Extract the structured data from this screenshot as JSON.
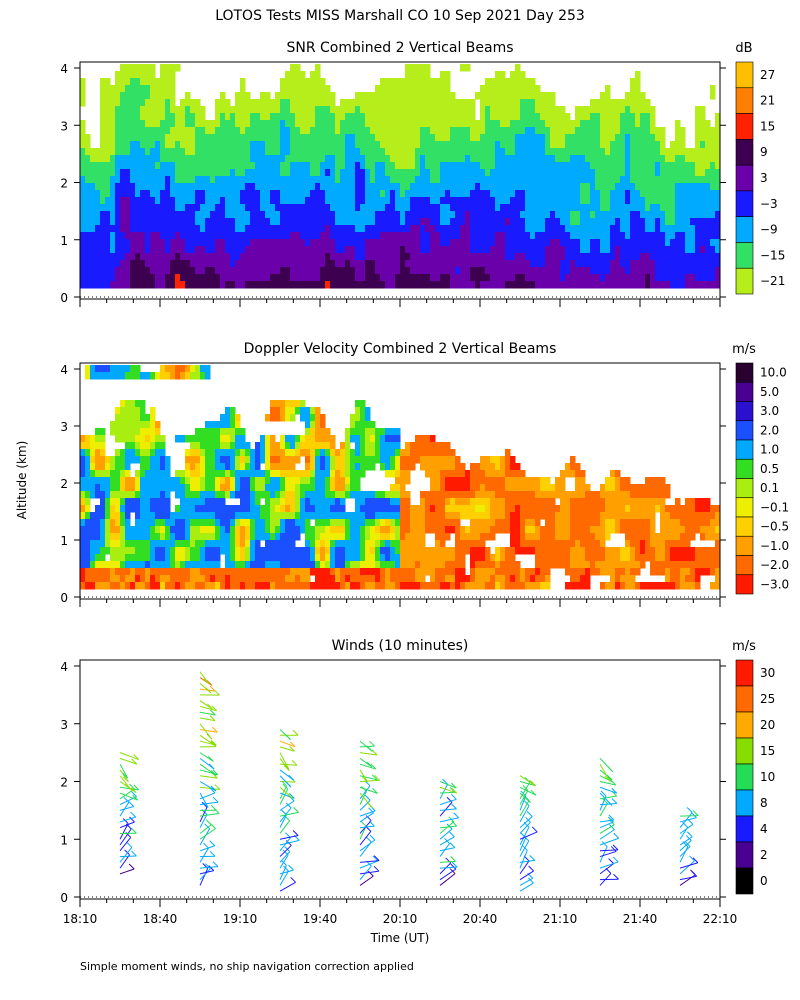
{
  "page": {
    "title": "LOTOS Tests MISS Marshall CO  10 Sep 2021 Day 253",
    "ylabel": "Altitude (km)",
    "xlabel": "Time (UT)",
    "footnote": "Simple moment winds, no ship navigation correction applied"
  },
  "chart_data": [
    {
      "type": "heatmap",
      "title": "SNR Combined 2 Vertical Beams",
      "ylabel": "Altitude (km)",
      "ylim": [
        0,
        4
      ],
      "yticks": [
        "0",
        "1",
        "2",
        "3",
        "4"
      ],
      "xlim": [
        "18:10",
        "22:10"
      ],
      "colorbar_unit": "dB",
      "colorbar_labels": [
        "27",
        "21",
        "15",
        "9",
        "3",
        "−3",
        "−9",
        "−15",
        "−21"
      ],
      "colorbar_colors": [
        "#ffbf00",
        "#ff7f00",
        "#ff2200",
        "#3d0050",
        "#6a00aa",
        "#1a1aff",
        "#00aaff",
        "#33e066",
        "#b5ee1a"
      ],
      "field_summary": [
        {
          "altitude_km": 0.5,
          "snr_db": 3
        },
        {
          "altitude_km": 1.0,
          "snr_db": -3
        },
        {
          "altitude_km": 1.5,
          "snr_db": -9
        },
        {
          "altitude_km": 2.0,
          "snr_db": -15
        },
        {
          "altitude_km": 3.0,
          "snr_db": -21
        }
      ]
    },
    {
      "type": "heatmap",
      "title": "Doppler Velocity Combined 2 Vertical Beams",
      "ylabel": "Altitude (km)",
      "ylim": [
        0,
        4
      ],
      "yticks": [
        "0",
        "1",
        "2",
        "3",
        "4"
      ],
      "xlim": [
        "18:10",
        "22:10"
      ],
      "colorbar_unit": "m/s",
      "colorbar_labels": [
        "10.0",
        "5.0",
        "3.0",
        "2.0",
        "1.0",
        "0.5",
        "0.1",
        "−0.1",
        "−0.5",
        "−1.0",
        "−2.0",
        "−3.0"
      ],
      "colorbar_colors": [
        "#2a0030",
        "#4a0090",
        "#2b10d0",
        "#1a50ff",
        "#00a8ff",
        "#33dd22",
        "#a8ee10",
        "#eeee00",
        "#ffd000",
        "#ffa000",
        "#ff6a00",
        "#ff1a00"
      ],
      "field_summary": [
        {
          "time": "18:40",
          "dominant_velocity_ms": 0.5
        },
        {
          "time": "19:40",
          "dominant_velocity_ms": 1.0
        },
        {
          "time": "20:40",
          "dominant_velocity_ms": -2.0
        },
        {
          "time": "21:40",
          "dominant_velocity_ms": -2.0
        }
      ]
    },
    {
      "type": "scatter",
      "title": "Winds (10 minutes)",
      "ylabel": "Altitude (km)",
      "xlabel": "Time (UT)",
      "ylim": [
        0,
        4
      ],
      "yticks": [
        "0",
        "1",
        "2",
        "3",
        "4"
      ],
      "xticks": [
        "18:10",
        "18:40",
        "19:10",
        "19:40",
        "20:10",
        "20:40",
        "21:10",
        "21:40",
        "22:10"
      ],
      "colorbar_unit": "m/s",
      "colorbar_labels": [
        "30",
        "25",
        "20",
        "15",
        "10",
        "8",
        "4",
        "2",
        "0"
      ],
      "colorbar_colors": [
        "#ff1a00",
        "#ff6a00",
        "#ffaa00",
        "#88dd00",
        "#22dd55",
        "#00aaff",
        "#1a1aff",
        "#4a0090",
        "#000000"
      ],
      "profiles": [
        {
          "time": "18:25",
          "altitude_range_km": [
            0.4,
            2.6
          ]
        },
        {
          "time": "18:55",
          "altitude_range_km": [
            0.2,
            4.0
          ]
        },
        {
          "time": "19:25",
          "altitude_range_km": [
            0.1,
            3.0
          ]
        },
        {
          "time": "19:55",
          "altitude_range_km": [
            0.2,
            2.8
          ]
        },
        {
          "time": "20:25",
          "altitude_range_km": [
            0.2,
            2.1
          ]
        },
        {
          "time": "20:55",
          "altitude_range_km": [
            0.1,
            2.2
          ]
        },
        {
          "time": "21:25",
          "altitude_range_km": [
            0.2,
            2.5
          ]
        },
        {
          "time": "21:55",
          "altitude_range_km": [
            0.2,
            1.5
          ]
        }
      ]
    }
  ]
}
